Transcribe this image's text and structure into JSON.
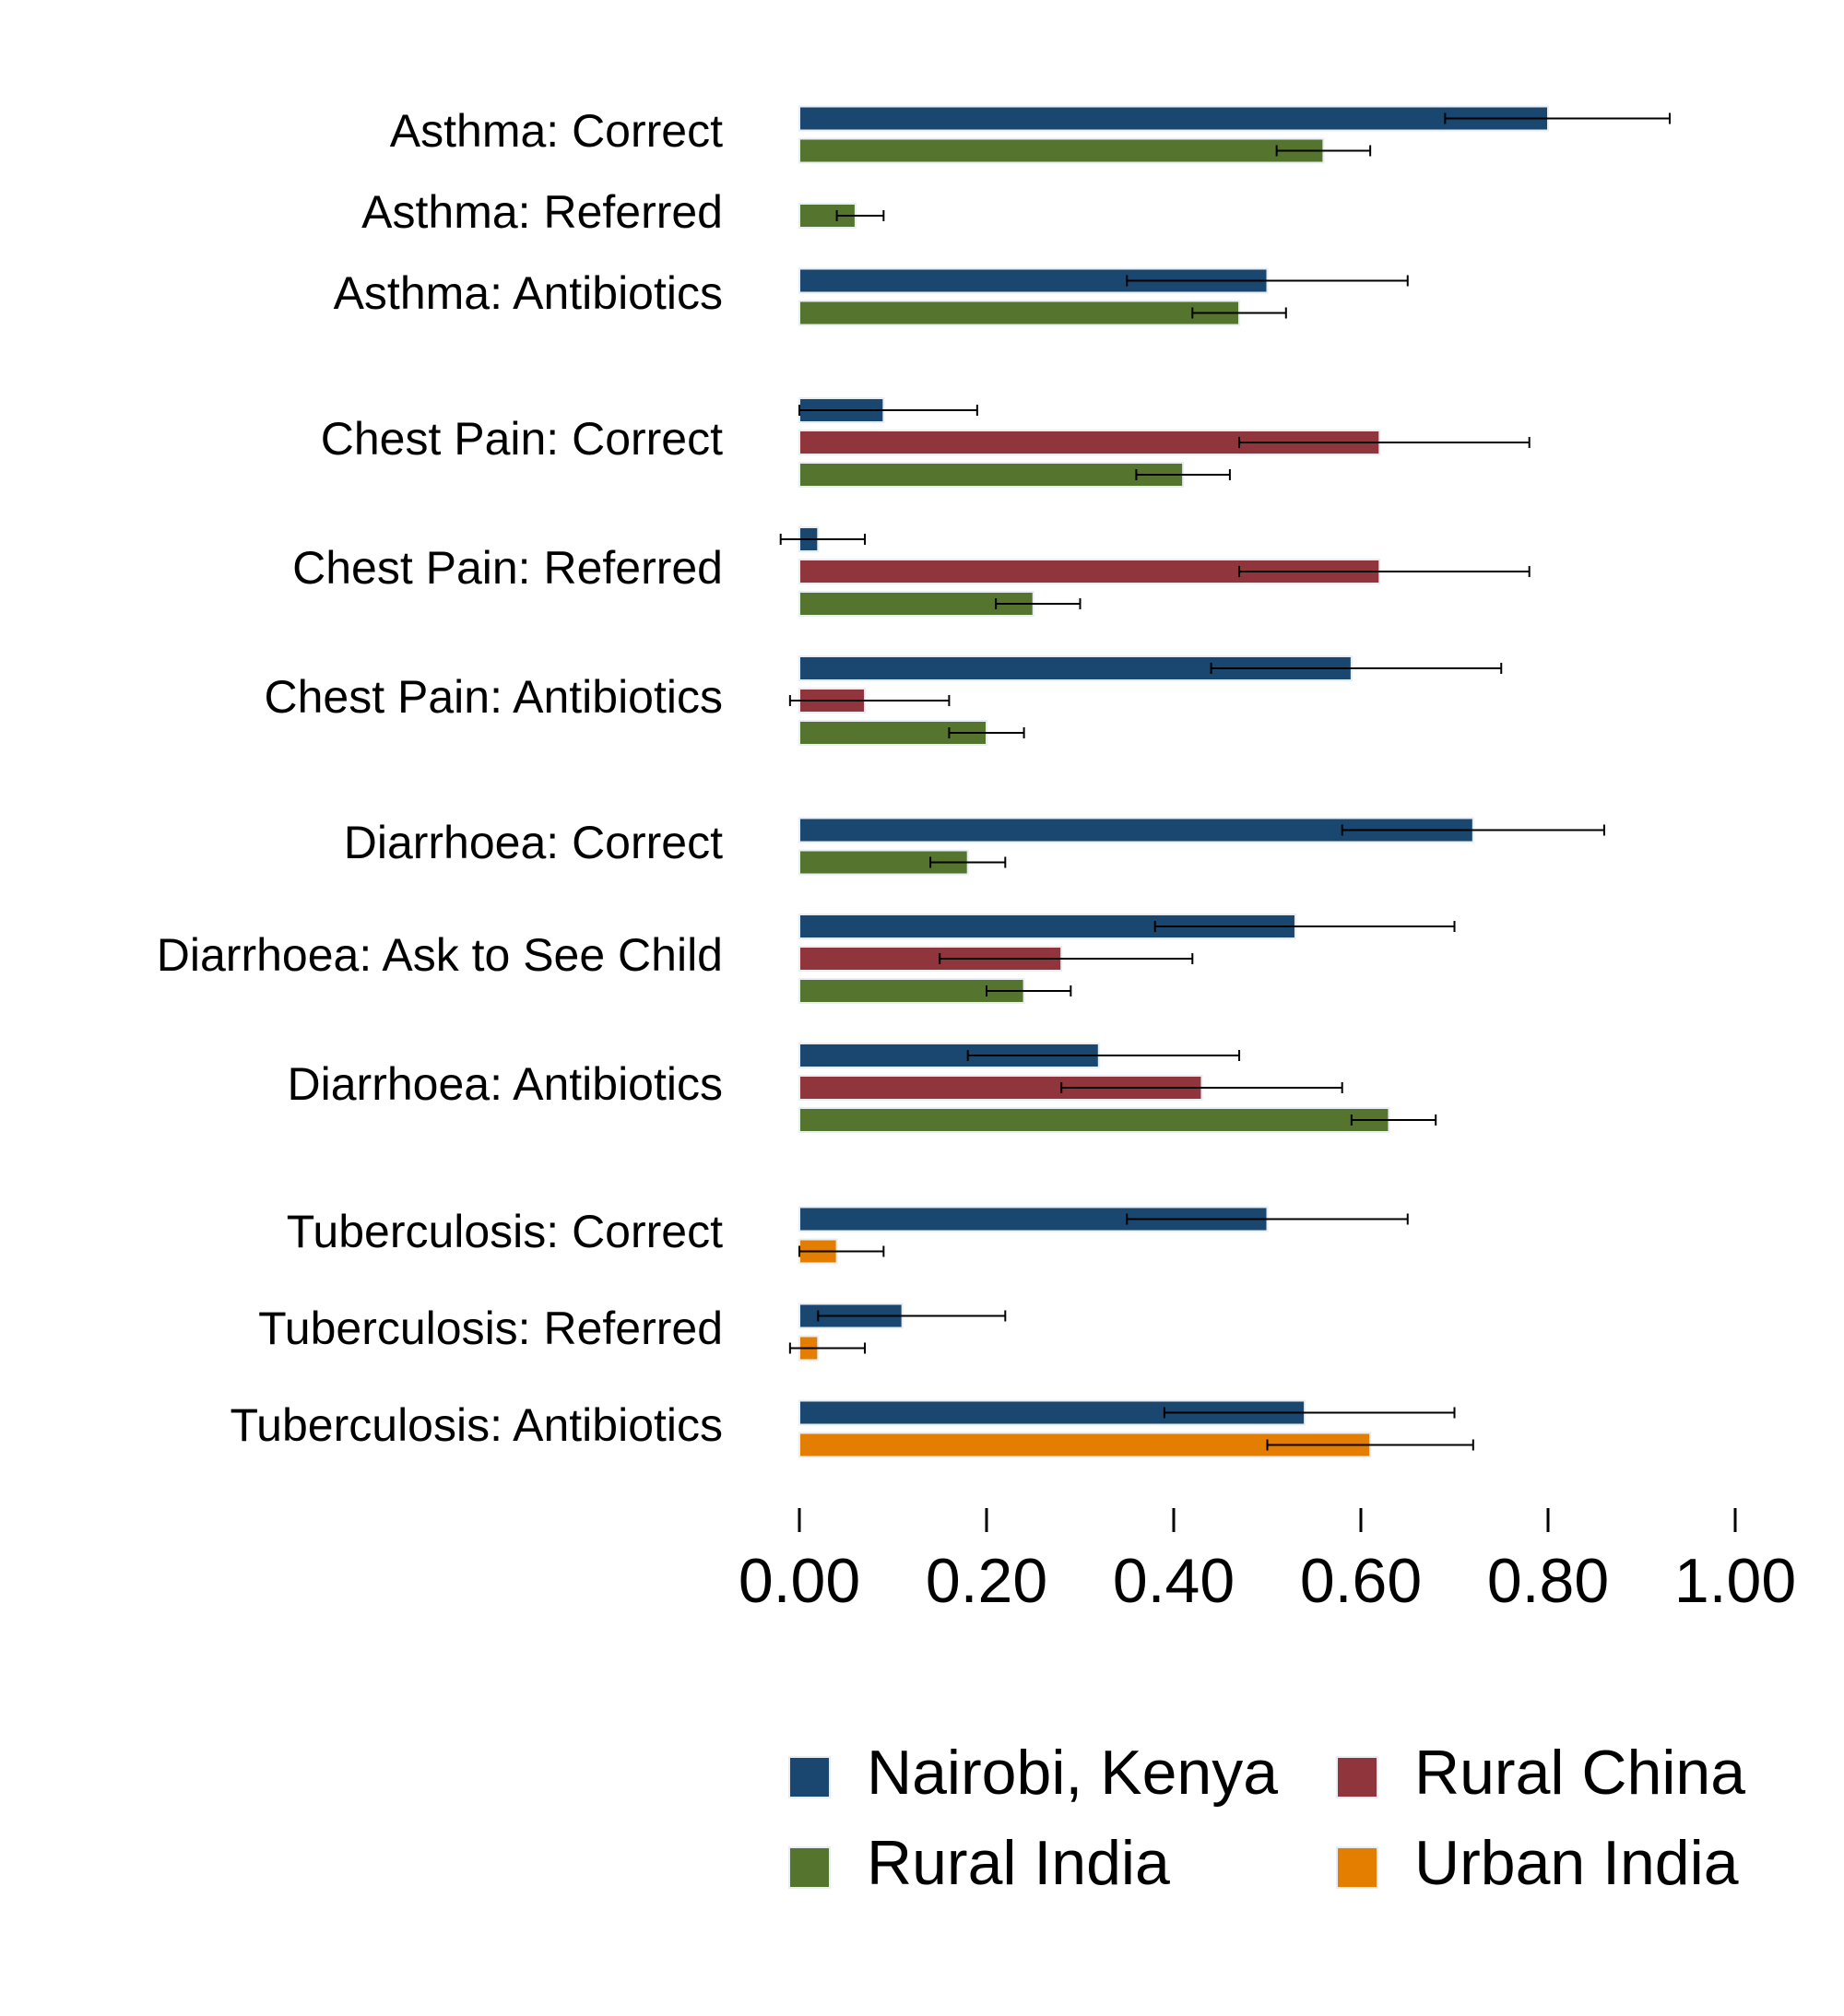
{
  "chart_data": {
    "type": "bar",
    "orientation": "horizontal",
    "title": "",
    "xlabel": "",
    "ylabel": "",
    "xlim": [
      0,
      1.0
    ],
    "x_ticks": [
      0,
      0.2,
      0.4,
      0.6,
      0.8,
      1.0
    ],
    "x_tick_labels": [
      "0.00",
      "0.20",
      "0.40",
      "0.60",
      "0.80",
      "1.00"
    ],
    "grid": false,
    "legend_position": "bottom",
    "series": [
      {
        "name": "Nairobi, Kenya",
        "color": "#1a476f"
      },
      {
        "name": "Rural China",
        "color": "#90353b"
      },
      {
        "name": "Rural India",
        "color": "#55752f"
      },
      {
        "name": "Urban India",
        "color": "#e37e00"
      }
    ],
    "categories": [
      {
        "label": "Asthma: Correct",
        "bars": [
          {
            "series": "Nairobi, Kenya",
            "value": 0.8,
            "ci": [
              0.69,
              0.93
            ]
          },
          {
            "series": "Rural India",
            "value": 0.56,
            "ci": [
              0.51,
              0.61
            ]
          }
        ]
      },
      {
        "label": "Asthma: Referred",
        "bars": [
          {
            "series": "Rural India",
            "value": 0.06,
            "ci": [
              0.04,
              0.09
            ]
          }
        ]
      },
      {
        "label": "Asthma: Antibiotics",
        "bars": [
          {
            "series": "Nairobi, Kenya",
            "value": 0.5,
            "ci": [
              0.35,
              0.65
            ]
          },
          {
            "series": "Rural India",
            "value": 0.47,
            "ci": [
              0.42,
              0.52
            ]
          }
        ]
      },
      {
        "label": "Chest Pain: Correct",
        "bars": [
          {
            "series": "Nairobi, Kenya",
            "value": 0.09,
            "ci": [
              0.0,
              0.19
            ]
          },
          {
            "series": "Rural China",
            "value": 0.62,
            "ci": [
              0.47,
              0.78
            ]
          },
          {
            "series": "Rural India",
            "value": 0.41,
            "ci": [
              0.36,
              0.46
            ]
          }
        ]
      },
      {
        "label": "Chest Pain: Referred",
        "bars": [
          {
            "series": "Nairobi, Kenya",
            "value": 0.02,
            "ci": [
              -0.02,
              0.07
            ]
          },
          {
            "series": "Rural China",
            "value": 0.62,
            "ci": [
              0.47,
              0.78
            ]
          },
          {
            "series": "Rural India",
            "value": 0.25,
            "ci": [
              0.21,
              0.3
            ]
          }
        ]
      },
      {
        "label": "Chest Pain: Antibiotics",
        "bars": [
          {
            "series": "Nairobi, Kenya",
            "value": 0.59,
            "ci": [
              0.44,
              0.75
            ]
          },
          {
            "series": "Rural China",
            "value": 0.07,
            "ci": [
              -0.01,
              0.16
            ]
          },
          {
            "series": "Rural India",
            "value": 0.2,
            "ci": [
              0.16,
              0.24
            ]
          }
        ]
      },
      {
        "label": "Diarrhoea: Correct",
        "bars": [
          {
            "series": "Nairobi, Kenya",
            "value": 0.72,
            "ci": [
              0.58,
              0.86
            ]
          },
          {
            "series": "Rural India",
            "value": 0.18,
            "ci": [
              0.14,
              0.22
            ]
          }
        ]
      },
      {
        "label": "Diarrhoea: Ask to See Child",
        "bars": [
          {
            "series": "Nairobi, Kenya",
            "value": 0.53,
            "ci": [
              0.38,
              0.7
            ]
          },
          {
            "series": "Rural China",
            "value": 0.28,
            "ci": [
              0.15,
              0.42
            ]
          },
          {
            "series": "Rural India",
            "value": 0.24,
            "ci": [
              0.2,
              0.29
            ]
          }
        ]
      },
      {
        "label": "Diarrhoea: Antibiotics",
        "bars": [
          {
            "series": "Nairobi, Kenya",
            "value": 0.32,
            "ci": [
              0.18,
              0.47
            ]
          },
          {
            "series": "Rural China",
            "value": 0.43,
            "ci": [
              0.28,
              0.58
            ]
          },
          {
            "series": "Rural India",
            "value": 0.63,
            "ci": [
              0.59,
              0.68
            ]
          }
        ]
      },
      {
        "label": "Tuberculosis: Correct",
        "bars": [
          {
            "series": "Nairobi, Kenya",
            "value": 0.5,
            "ci": [
              0.35,
              0.65
            ]
          },
          {
            "series": "Urban India",
            "value": 0.04,
            "ci": [
              0.0,
              0.09
            ]
          }
        ]
      },
      {
        "label": "Tuberculosis: Referred",
        "bars": [
          {
            "series": "Nairobi, Kenya",
            "value": 0.11,
            "ci": [
              0.02,
              0.22
            ]
          },
          {
            "series": "Urban India",
            "value": 0.02,
            "ci": [
              -0.01,
              0.07
            ]
          }
        ]
      },
      {
        "label": "Tuberculosis: Antibiotics",
        "bars": [
          {
            "series": "Nairobi, Kenya",
            "value": 0.54,
            "ci": [
              0.39,
              0.7
            ]
          },
          {
            "series": "Urban India",
            "value": 0.61,
            "ci": [
              0.5,
              0.72
            ]
          }
        ]
      }
    ]
  }
}
